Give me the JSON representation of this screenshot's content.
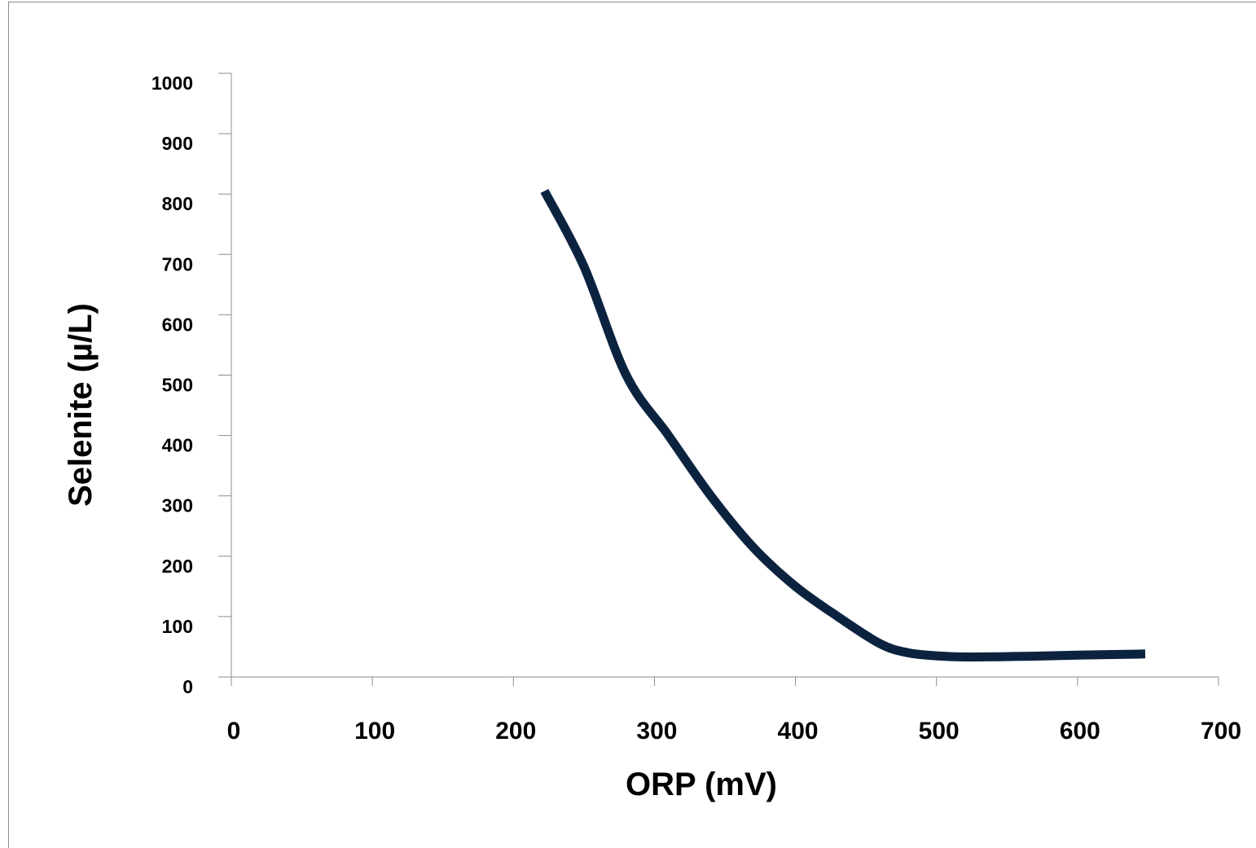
{
  "chart_data": {
    "type": "line",
    "title": "",
    "xlabel": "ORP (mV)",
    "ylabel": "Selenite (µ/L)",
    "xlim": [
      0,
      700
    ],
    "ylim": [
      0,
      1000
    ],
    "x_ticks": [
      0,
      100,
      200,
      300,
      400,
      500,
      600,
      700
    ],
    "y_ticks": [
      0,
      100,
      200,
      300,
      400,
      500,
      600,
      700,
      800,
      900,
      1000
    ],
    "grid": false,
    "legend": "none",
    "line_color": "#0c2340",
    "series": [
      {
        "x": [
          222,
          250,
          280,
          310,
          340,
          370,
          400,
          430,
          460,
          480,
          500,
          520,
          560,
          600,
          648
        ],
        "values": [
          805,
          680,
          500,
          400,
          300,
          215,
          150,
          100,
          55,
          40,
          35,
          33,
          34,
          36,
          38
        ]
      }
    ]
  }
}
